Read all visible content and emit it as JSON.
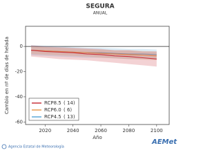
{
  "chart_data": {
    "type": "line",
    "title": "SEGURA",
    "subtitle": "ANUAL",
    "x_label": "Año",
    "y_label": "Cambio en nº de días de helada",
    "x": [
      2010,
      2020,
      2030,
      2040,
      2050,
      2060,
      2070,
      2080,
      2090,
      2100
    ],
    "xlim": [
      2006,
      2109
    ],
    "xticks": [
      2020,
      2040,
      2060,
      2080,
      2100
    ],
    "ylim": [
      -62,
      16
    ],
    "yticks": [
      0,
      -20,
      -40,
      -60
    ],
    "zero_line": true,
    "legend": "lower left",
    "series": [
      {
        "name": "RCP8.5",
        "count_label": "( 14)",
        "color": "#c8323c",
        "values": [
          -3,
          -4,
          -4.5,
          -5,
          -6,
          -6.5,
          -7.5,
          -8,
          -9,
          -10
        ],
        "upper": [
          1,
          0,
          -0.5,
          -1,
          -1.5,
          -2,
          -3,
          -3,
          -4,
          -4
        ],
        "lower": [
          -8,
          -9,
          -10,
          -10.5,
          -11,
          -12,
          -13,
          -14,
          -15,
          -16
        ]
      },
      {
        "name": "RCP6.0",
        "count_label": "(  6)",
        "color": "#e89a50",
        "values": [
          -3,
          -3.5,
          -4,
          -4.5,
          -5,
          -5.5,
          -6,
          -6.5,
          -7,
          -7.5
        ],
        "upper": [
          0,
          -0.5,
          -1,
          -1.5,
          -2,
          -2.5,
          -3,
          -3,
          -3.5,
          -4
        ],
        "lower": [
          -6,
          -6.5,
          -7,
          -7.5,
          -8,
          -9,
          -9.5,
          -10,
          -10.5,
          -11
        ]
      },
      {
        "name": "RCP4.5",
        "count_label": "( 13)",
        "color": "#5aa8d8",
        "values": [
          -3,
          -3.5,
          -4,
          -4.5,
          -5,
          -5,
          -5.5,
          -6,
          -6,
          -6.5
        ],
        "upper": [
          1,
          0.5,
          0,
          -0.5,
          -1,
          -1,
          -1.5,
          -2,
          -2,
          -2.5
        ],
        "lower": [
          -7,
          -7.5,
          -8,
          -8.5,
          -9,
          -9,
          -9.5,
          -10,
          -10,
          -10.5
        ]
      }
    ]
  },
  "footer": {
    "agency": "Agencia Estatal de Meteorología",
    "logo": "AEMet"
  }
}
